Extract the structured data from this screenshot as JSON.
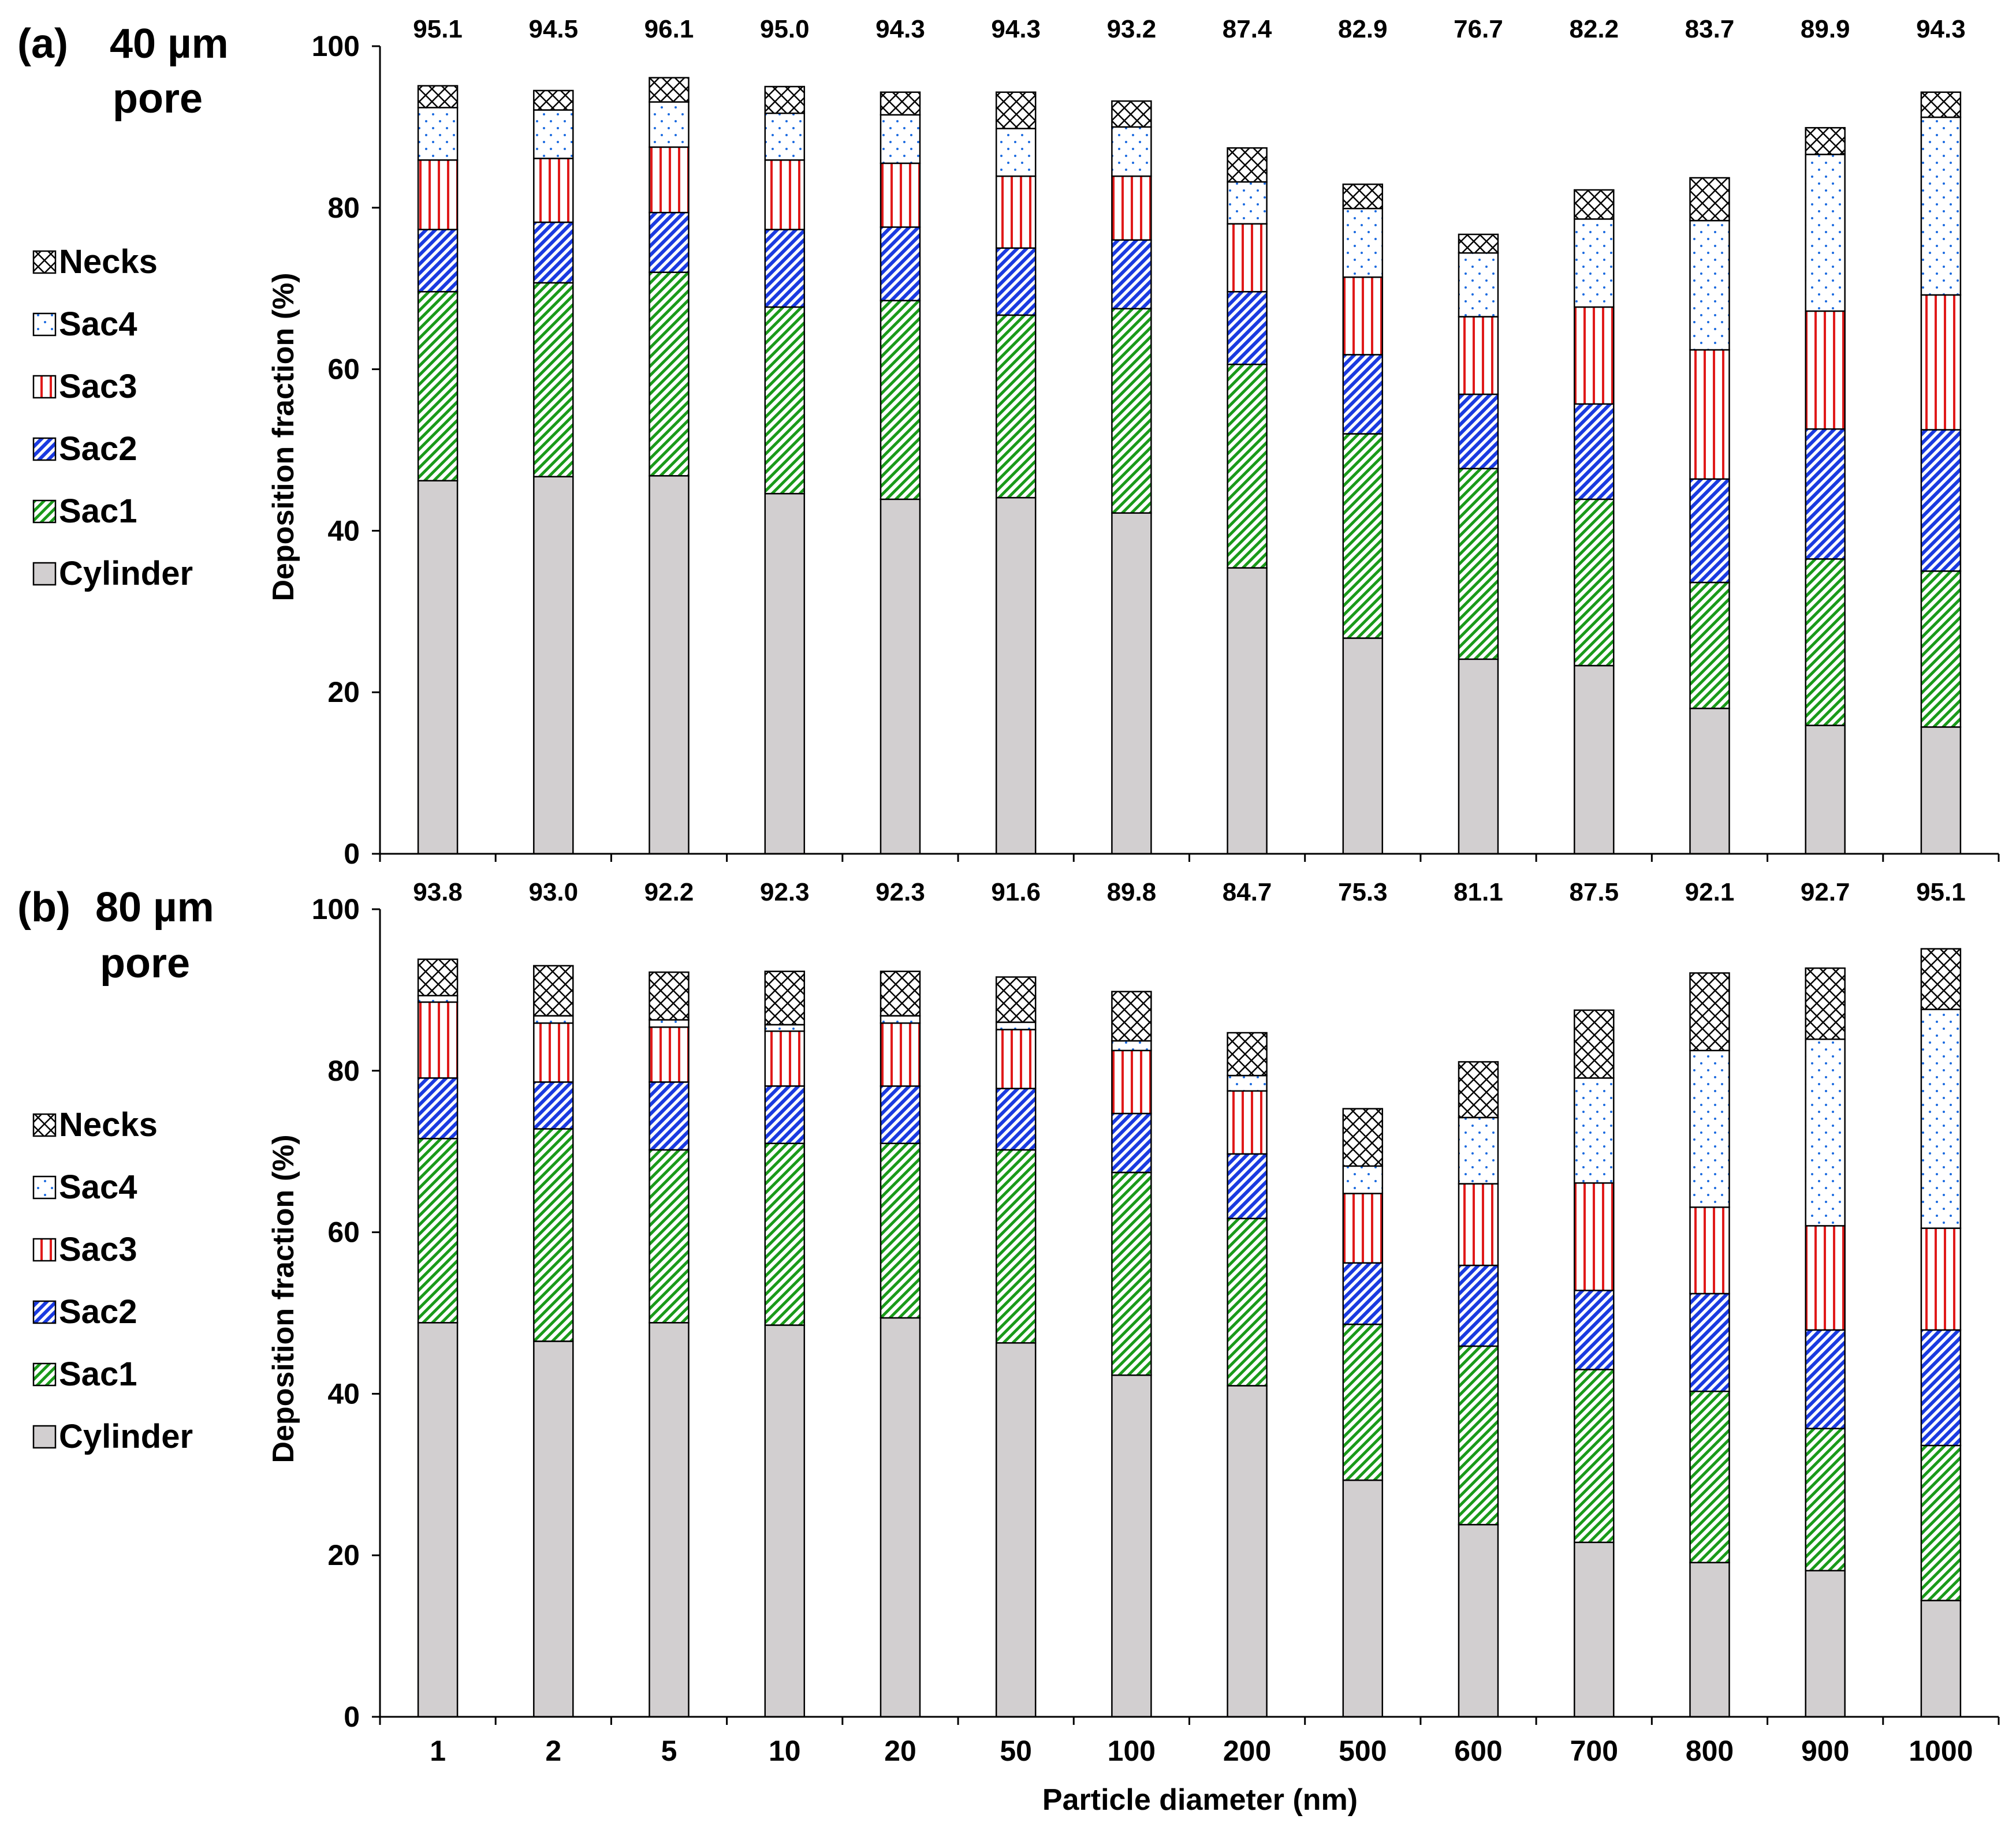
{
  "chart_data": [
    {
      "type": "bar",
      "stacked": true,
      "panel_label": "(a)",
      "title_line1": "40 µm",
      "title_line2": "pore",
      "xlabel": "Particle diameter (nm)",
      "ylabel": "Deposition fraction (%)",
      "ylim": [
        0,
        100
      ],
      "yticks": [
        "0",
        "20",
        "40",
        "60",
        "80",
        "100"
      ],
      "legend_position": "left",
      "categories": [
        "1",
        "2",
        "5",
        "10",
        "20",
        "50",
        "100",
        "200",
        "500",
        "600",
        "700",
        "800",
        "900",
        "1000"
      ],
      "totals": [
        "95.1",
        "94.5",
        "96.1",
        "95.0",
        "94.3",
        "94.3",
        "93.2",
        "87.4",
        "82.9",
        "76.7",
        "82.2",
        "83.7",
        "89.9",
        "94.3"
      ],
      "series": [
        {
          "name": "Cylinder",
          "values": [
            46.2,
            46.7,
            46.8,
            44.6,
            43.9,
            44.1,
            42.2,
            35.4,
            26.7,
            24.1,
            23.3,
            18.0,
            15.9,
            15.7
          ]
        },
        {
          "name": "Sac1",
          "values": [
            23.4,
            24.0,
            25.2,
            23.1,
            24.6,
            22.6,
            25.3,
            25.2,
            25.3,
            23.6,
            20.6,
            15.6,
            20.6,
            19.3
          ]
        },
        {
          "name": "Sac2",
          "values": [
            7.7,
            7.5,
            7.4,
            9.6,
            9.1,
            8.3,
            8.5,
            9.0,
            9.8,
            9.2,
            11.8,
            12.8,
            16.1,
            17.5
          ]
        },
        {
          "name": "Sac3",
          "values": [
            8.6,
            7.9,
            8.1,
            8.6,
            7.9,
            8.9,
            7.9,
            8.4,
            9.6,
            9.6,
            12.0,
            16.0,
            14.6,
            16.7
          ]
        },
        {
          "name": "Sac4",
          "values": [
            6.5,
            6.0,
            5.6,
            5.8,
            6.0,
            5.9,
            6.1,
            5.2,
            8.5,
            7.9,
            10.9,
            16.0,
            19.4,
            22.0
          ]
        },
        {
          "name": "Necks",
          "values": [
            2.7,
            2.4,
            3.0,
            3.3,
            2.8,
            4.5,
            3.2,
            4.2,
            3.0,
            2.3,
            3.6,
            5.3,
            3.3,
            3.1
          ]
        }
      ]
    },
    {
      "type": "bar",
      "stacked": true,
      "panel_label": "(b)",
      "title_line1": "80 µm",
      "title_line2": "pore",
      "xlabel": "Particle diameter (nm)",
      "ylabel": "Deposition fraction (%)",
      "ylim": [
        0,
        100
      ],
      "yticks": [
        "0",
        "20",
        "40",
        "60",
        "80",
        "100"
      ],
      "legend_position": "left",
      "categories": [
        "1",
        "2",
        "5",
        "10",
        "20",
        "50",
        "100",
        "200",
        "500",
        "600",
        "700",
        "800",
        "900",
        "1000"
      ],
      "totals": [
        "93.8",
        "93.0",
        "92.2",
        "92.3",
        "92.3",
        "91.6",
        "89.8",
        "84.7",
        "75.3",
        "81.1",
        "87.5",
        "92.1",
        "92.7",
        "95.1"
      ],
      "series": [
        {
          "name": "Cylinder",
          "values": [
            48.8,
            46.5,
            48.8,
            48.5,
            49.4,
            46.3,
            42.3,
            41.0,
            29.3,
            23.8,
            21.6,
            19.1,
            18.1,
            14.4
          ]
        },
        {
          "name": "Sac1",
          "values": [
            22.8,
            26.3,
            21.4,
            22.5,
            21.6,
            23.9,
            25.1,
            20.7,
            19.3,
            22.1,
            21.4,
            21.2,
            17.6,
            19.2
          ]
        },
        {
          "name": "Sac2",
          "values": [
            7.5,
            5.8,
            8.4,
            7.1,
            7.1,
            7.6,
            7.3,
            8.0,
            7.6,
            10.0,
            9.8,
            12.1,
            12.2,
            14.3
          ]
        },
        {
          "name": "Sac3",
          "values": [
            9.4,
            7.3,
            6.8,
            6.8,
            7.8,
            7.3,
            7.8,
            7.8,
            8.6,
            10.1,
            13.3,
            10.7,
            12.9,
            12.6
          ]
        },
        {
          "name": "Sac4",
          "values": [
            0.8,
            0.9,
            0.9,
            0.8,
            0.9,
            0.9,
            1.2,
            1.9,
            3.4,
            8.2,
            13.0,
            19.4,
            23.1,
            27.1
          ]
        },
        {
          "name": "Necks",
          "values": [
            4.5,
            6.2,
            5.9,
            6.6,
            5.5,
            5.6,
            6.1,
            5.3,
            7.1,
            6.9,
            8.4,
            9.6,
            8.8,
            7.5
          ]
        }
      ]
    }
  ],
  "legend_order": [
    "Necks",
    "Sac4",
    "Sac3",
    "Sac2",
    "Sac1",
    "Cylinder"
  ],
  "colors": {
    "Cylinder": "#d2cfd0",
    "Sac1": "#1a9a1a",
    "Sac2": "#1a3ae0",
    "Sac3": "#e01a1a",
    "Sac4": "#1a6ae0",
    "Necks": "#000000"
  }
}
